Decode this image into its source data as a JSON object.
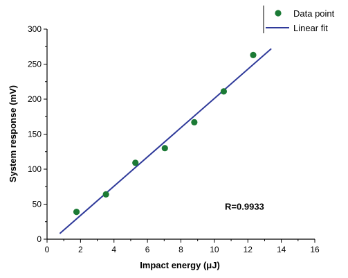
{
  "chart_data": {
    "type": "scatter",
    "xlabel": "Impact energy (μJ)",
    "ylabel": "System response (mV)",
    "xlim": [
      0,
      16
    ],
    "ylim": [
      0,
      300
    ],
    "x_ticks": [
      "0",
      "2",
      "4",
      "6",
      "8",
      "10",
      "12",
      "14",
      "16"
    ],
    "y_ticks": [
      "0",
      "50",
      "100",
      "150",
      "200",
      "250",
      "300"
    ],
    "grid": false,
    "legend_position": "top-right",
    "series": [
      {
        "name": "Data point",
        "kind": "scatter",
        "color": "#1b7a35",
        "x": [
          1.76,
          3.52,
          5.28,
          7.04,
          8.8,
          10.56,
          12.32
        ],
        "y": [
          39,
          64,
          109,
          130,
          167,
          211,
          263
        ]
      },
      {
        "name": "Linear fit",
        "kind": "line",
        "color": "#2f3a9a",
        "x": [
          0.76,
          13.4
        ],
        "y": [
          8,
          272
        ]
      }
    ],
    "annotations": [
      {
        "text": "R=0.9933",
        "x": 11.8,
        "y": 42
      }
    ]
  }
}
